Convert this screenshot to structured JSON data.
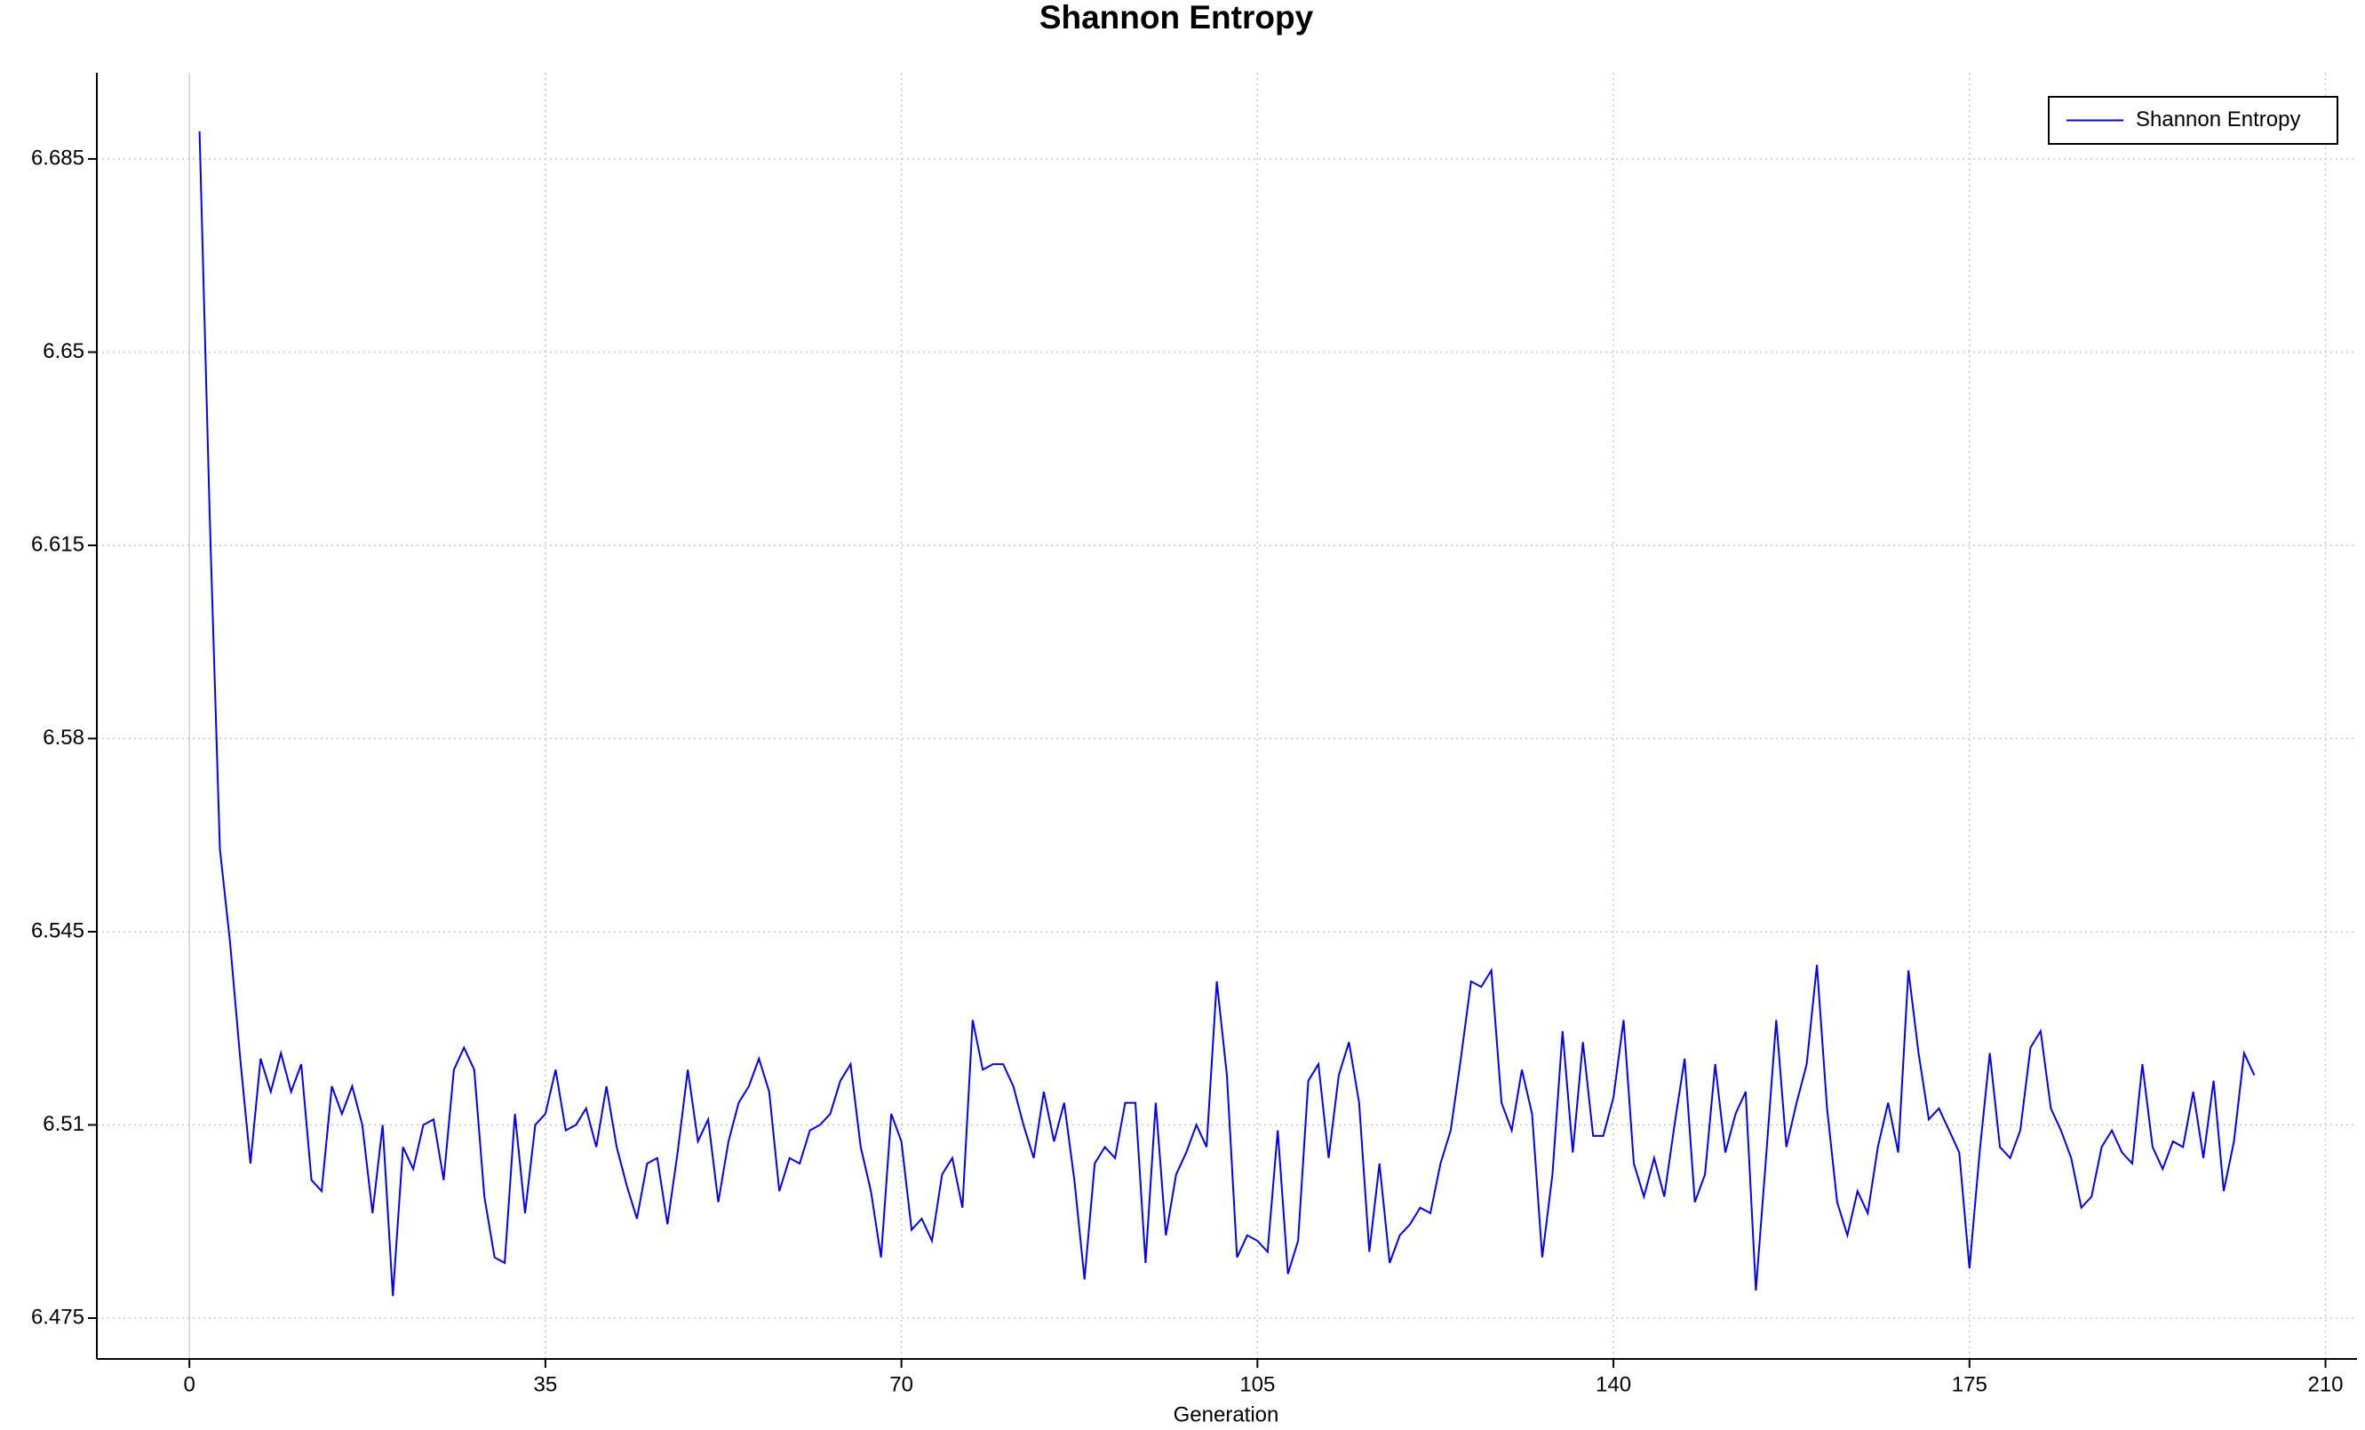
{
  "chart_data": {
    "type": "line",
    "title": "Shannon Entropy",
    "xlabel": "Generation",
    "x": [
      1,
      2,
      3,
      4,
      5,
      6,
      7,
      8,
      9,
      10,
      11,
      12,
      13,
      14,
      15,
      16,
      17,
      18,
      19,
      20,
      21,
      22,
      23,
      24,
      25,
      26,
      27,
      28,
      29,
      30,
      31,
      32,
      33,
      34,
      35,
      36,
      37,
      38,
      39,
      40,
      41,
      42,
      43,
      44,
      45,
      46,
      47,
      48,
      49,
      50,
      51,
      52,
      53,
      54,
      55,
      56,
      57,
      58,
      59,
      60,
      61,
      62,
      63,
      64,
      65,
      66,
      67,
      68,
      69,
      70,
      71,
      72,
      73,
      74,
      75,
      76,
      77,
      78,
      79,
      80,
      81,
      82,
      83,
      84,
      85,
      86,
      87,
      88,
      89,
      90,
      91,
      92,
      93,
      94,
      95,
      96,
      97,
      98,
      99,
      100,
      101,
      102,
      103,
      104,
      105,
      106,
      107,
      108,
      109,
      110,
      111,
      112,
      113,
      114,
      115,
      116,
      117,
      118,
      119,
      120,
      121,
      122,
      123,
      124,
      125,
      126,
      127,
      128,
      129,
      130,
      131,
      132,
      133,
      134,
      135,
      136,
      137,
      138,
      139,
      140,
      141,
      142,
      143,
      144,
      145,
      146,
      147,
      148,
      149,
      150,
      151,
      152,
      153,
      154,
      155,
      156,
      157,
      158,
      159,
      160,
      161,
      162,
      163,
      164,
      165,
      166,
      167,
      168,
      169,
      170,
      171,
      172,
      173,
      174,
      175,
      176,
      177,
      178,
      179,
      180,
      181,
      182,
      183,
      184,
      185,
      186,
      187,
      188,
      189,
      190,
      191,
      192,
      193,
      194,
      195,
      196,
      197,
      198,
      199,
      200,
      201,
      202,
      203
    ],
    "series": [
      {
        "name": "Shannon Entropy",
        "color": "#0000ff",
        "values": [
          6.69,
          6.62,
          6.56,
          6.543,
          6.522,
          6.503,
          6.522,
          6.516,
          6.523,
          6.516,
          6.521,
          6.5,
          6.498,
          6.517,
          6.512,
          6.517,
          6.51,
          6.494,
          6.51,
          6.479,
          6.506,
          6.502,
          6.51,
          6.511,
          6.5,
          6.52,
          6.524,
          6.52,
          6.497,
          6.486,
          6.485,
          6.512,
          6.494,
          6.51,
          6.512,
          6.52,
          6.509,
          6.51,
          6.513,
          6.506,
          6.517,
          6.506,
          6.499,
          6.493,
          6.503,
          6.504,
          6.492,
          6.505,
          6.52,
          6.507,
          6.511,
          6.496,
          6.507,
          6.514,
          6.517,
          6.522,
          6.516,
          6.498,
          6.504,
          6.503,
          6.509,
          6.51,
          6.512,
          6.518,
          6.521,
          6.506,
          6.498,
          6.486,
          6.512,
          6.507,
          6.491,
          6.493,
          6.489,
          6.501,
          6.504,
          6.495,
          6.529,
          6.52,
          6.521,
          6.521,
          6.517,
          6.51,
          6.504,
          6.516,
          6.507,
          6.514,
          6.5,
          6.482,
          6.503,
          6.506,
          6.504,
          6.514,
          6.514,
          6.485,
          6.514,
          6.49,
          6.501,
          6.505,
          6.51,
          6.506,
          6.536,
          6.519,
          6.486,
          6.49,
          6.489,
          6.487,
          6.509,
          6.483,
          6.489,
          6.518,
          6.521,
          6.504,
          6.519,
          6.525,
          6.514,
          6.487,
          6.503,
          6.485,
          6.49,
          6.492,
          6.495,
          6.494,
          6.503,
          6.509,
          6.522,
          6.536,
          6.535,
          6.538,
          6.514,
          6.509,
          6.52,
          6.512,
          6.486,
          6.501,
          6.527,
          6.505,
          6.525,
          6.508,
          6.508,
          6.515,
          6.529,
          6.503,
          6.497,
          6.504,
          6.497,
          6.51,
          6.522,
          6.496,
          6.501,
          6.521,
          6.505,
          6.512,
          6.516,
          6.48,
          6.504,
          6.529,
          6.506,
          6.514,
          6.521,
          6.539,
          6.513,
          6.496,
          6.49,
          6.498,
          6.494,
          6.506,
          6.514,
          6.505,
          6.538,
          6.523,
          6.511,
          6.513,
          6.509,
          6.505,
          6.484,
          6.505,
          6.523,
          6.506,
          6.504,
          6.509,
          6.524,
          6.527,
          6.513,
          6.509,
          6.504,
          6.495,
          6.497,
          6.506,
          6.509,
          6.505,
          6.503,
          6.521,
          6.506,
          6.502,
          6.507,
          6.506,
          6.516,
          6.504,
          6.518,
          6.498,
          6.507,
          6.523,
          6.519
        ]
      }
    ],
    "xlim": [
      -9.1,
      213.1
    ],
    "ylim": [
      6.4676,
      6.7006
    ],
    "xticks": [
      0,
      35,
      70,
      105,
      140,
      175,
      210
    ],
    "yticks": [
      6.475,
      6.51,
      6.545,
      6.58,
      6.615,
      6.65,
      6.685
    ],
    "grid": true,
    "legend": "upper right"
  }
}
